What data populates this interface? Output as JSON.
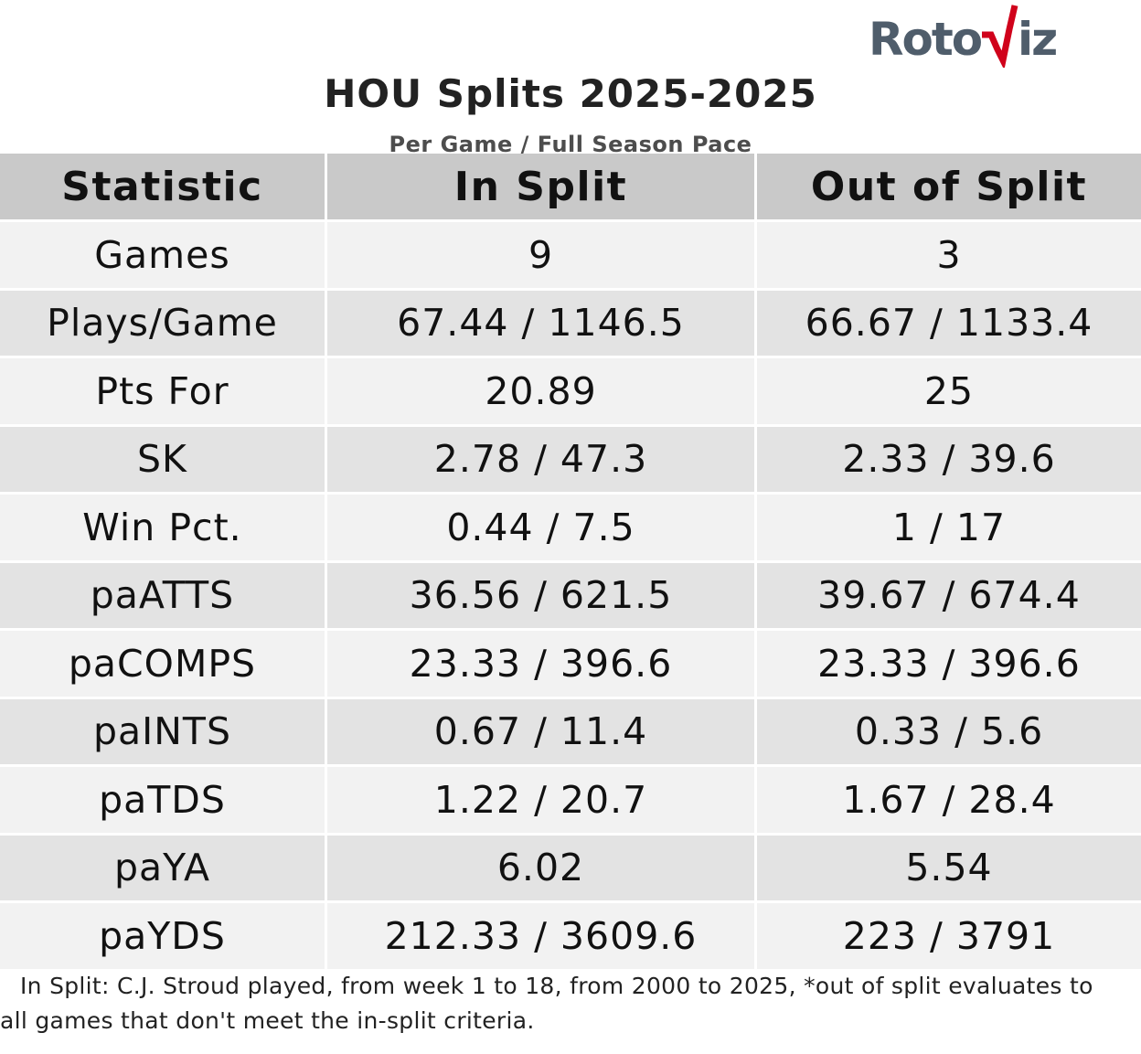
{
  "logo": {
    "text_left": "Roto",
    "text_right": "iz",
    "accent_color": "#d0021b",
    "text_color": "#4f5d6b"
  },
  "title": "HOU Splits 2025-2025",
  "subtitle": "Per Game / Full Season Pace",
  "chart_data": {
    "type": "table",
    "columns": [
      "Statistic",
      "In Split",
      "Out of Split"
    ],
    "rows": [
      [
        "Games",
        "9",
        "3"
      ],
      [
        "Plays/Game",
        "67.44 / 1146.5",
        "66.67 / 1133.4"
      ],
      [
        "Pts For",
        "20.89",
        "25"
      ],
      [
        "SK",
        "2.78 / 47.3",
        "2.33 / 39.6"
      ],
      [
        "Win Pct.",
        "0.44 / 7.5",
        "1 / 17"
      ],
      [
        "paATTS",
        "36.56 / 621.5",
        "39.67 / 674.4"
      ],
      [
        "paCOMPS",
        "23.33 / 396.6",
        "23.33 / 396.6"
      ],
      [
        "paINTS",
        "0.67 / 11.4",
        "0.33 / 5.6"
      ],
      [
        "paTDS",
        "1.22 / 20.7",
        "1.67 / 28.4"
      ],
      [
        "paYA",
        "6.02",
        "5.54"
      ],
      [
        "paYDS",
        "212.33 / 3609.6",
        "223 / 3791"
      ]
    ]
  },
  "footnote": {
    "line1": "In Split: C.J. Stroud played, from week 1 to 18, from 2000 to 2025,  *out of split evaluates to",
    "line2": "all games that don't meet the in-split criteria."
  }
}
